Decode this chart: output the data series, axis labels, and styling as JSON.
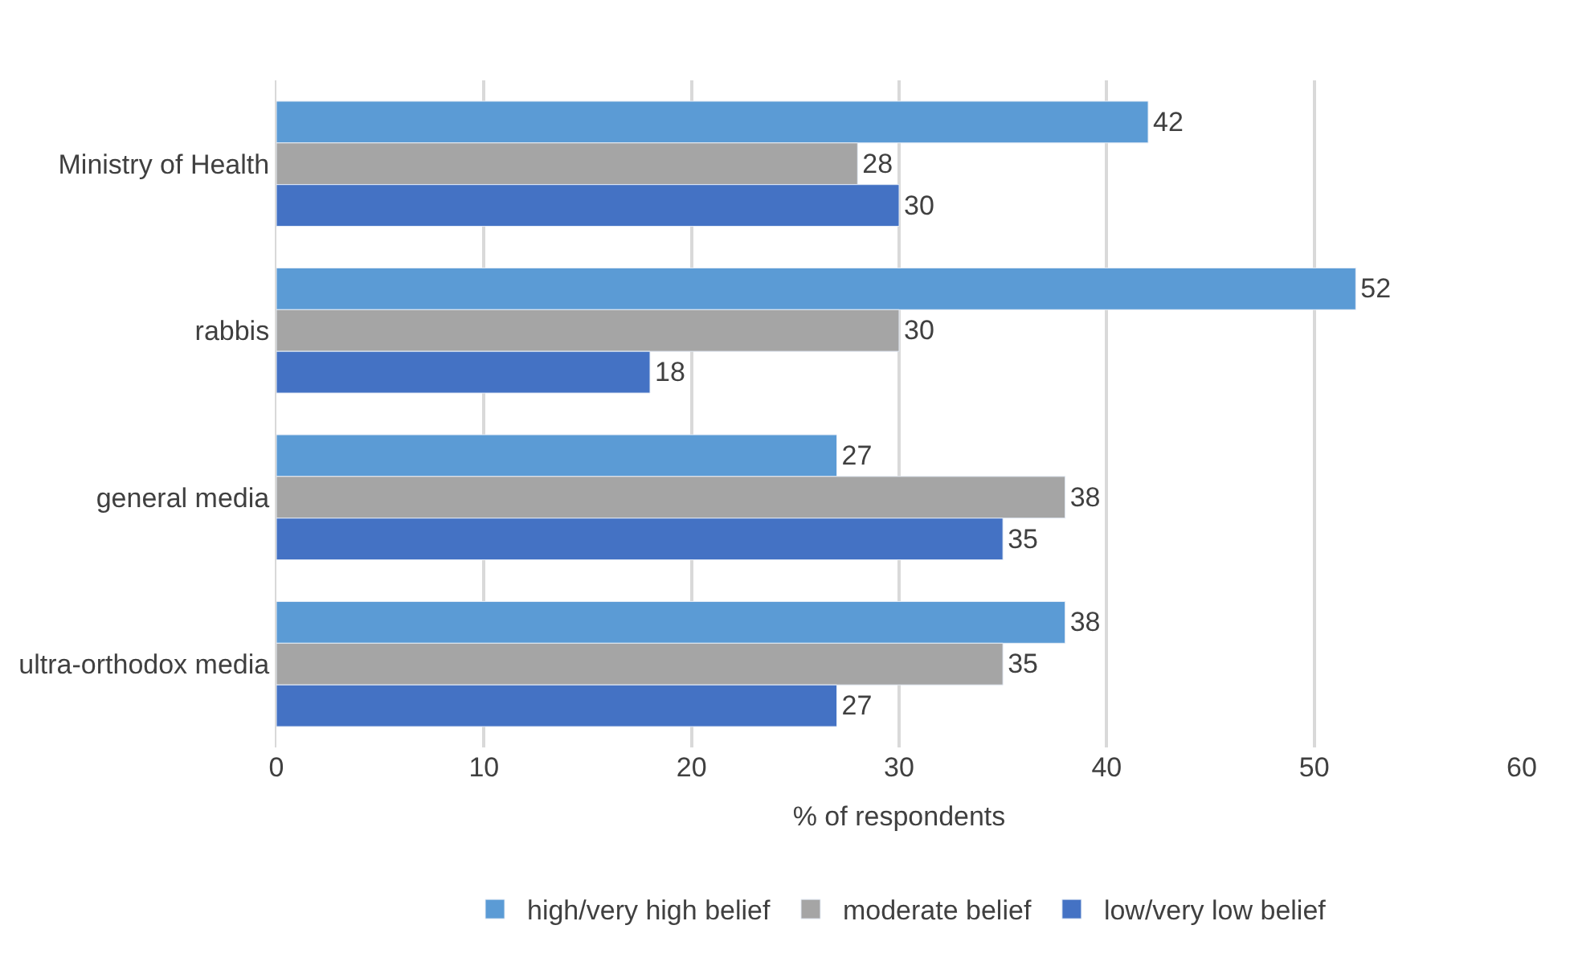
{
  "chart_data": {
    "type": "bar",
    "orientation": "horizontal",
    "xlabel": "% of respondents",
    "categories": [
      "Ministry of Health",
      "rabbis",
      "general media",
      "ultra-orthodox media"
    ],
    "series": [
      {
        "name": "high/very high belief",
        "color": "#5b9bd5",
        "values": [
          42,
          52,
          27,
          38
        ]
      },
      {
        "name": "moderate belief",
        "color": "#a5a5a5",
        "values": [
          28,
          30,
          38,
          35
        ]
      },
      {
        "name": "low/very low belief",
        "color": "#4472c4",
        "values": [
          30,
          18,
          35,
          27
        ]
      }
    ],
    "xlim": [
      0,
      60
    ],
    "xticks": [
      0,
      10,
      20,
      30,
      40,
      50,
      60
    ],
    "grid": "x",
    "legend": "bottom",
    "data_labels": true
  }
}
